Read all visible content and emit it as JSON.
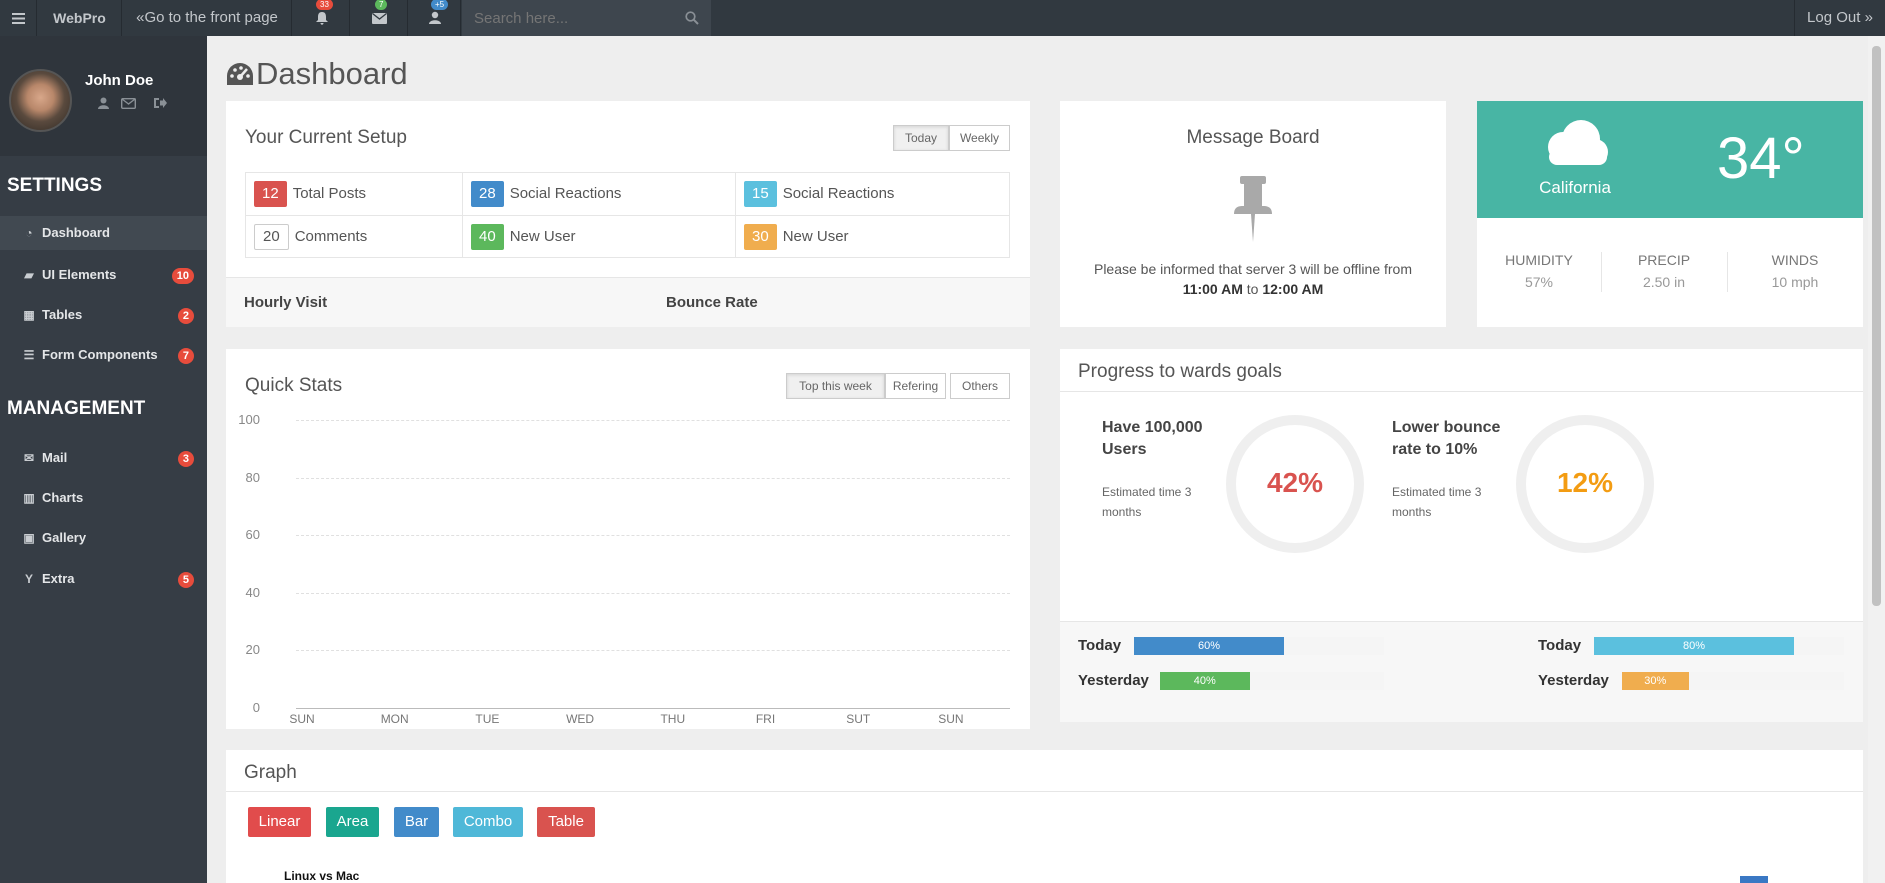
{
  "topbar": {
    "brand": "WebPro",
    "front_link": "«Go to the front page",
    "notifications_count": "33",
    "messages_count": "7",
    "users_count": "+5",
    "search_placeholder": "Search here...",
    "logout": "Log Out »"
  },
  "user": {
    "name": "John Doe"
  },
  "sidebar": {
    "settings_heading": "SETTINGS",
    "management_heading": "MANAGEMENT",
    "items": [
      {
        "label": "Dashboard",
        "badge": ""
      },
      {
        "label": "UI Elements",
        "badge": "10"
      },
      {
        "label": "Tables",
        "badge": "2"
      },
      {
        "label": "Form Components",
        "badge": "7"
      },
      {
        "label": "Mail",
        "badge": "3"
      },
      {
        "label": "Charts",
        "badge": ""
      },
      {
        "label": "Gallery",
        "badge": ""
      },
      {
        "label": "Extra",
        "badge": "5"
      }
    ]
  },
  "page": {
    "title": "Dashboard"
  },
  "setup": {
    "title": "Your Current Setup",
    "btn_today": "Today",
    "btn_weekly": "Weekly",
    "stats": [
      {
        "num": "12",
        "label": "Total Posts",
        "color": "#d9534f"
      },
      {
        "num": "28",
        "label": "Social Reactions",
        "color": "#428bca"
      },
      {
        "num": "15",
        "label": "Social Reactions",
        "color": "#5bc0de"
      },
      {
        "num": "20",
        "label": "Comments",
        "color": "#ffffff"
      },
      {
        "num": "40",
        "label": "New User",
        "color": "#5cb85c"
      },
      {
        "num": "30",
        "label": "New User",
        "color": "#f0ad4e"
      }
    ],
    "hourly_visit": "Hourly Visit",
    "bounce_rate": "Bounce Rate"
  },
  "message_board": {
    "title": "Message Board",
    "text": "Please be informed that server 3 will be offline from",
    "time_from": "11:00 AM",
    "to": "to",
    "time_to": "12:00 AM"
  },
  "weather": {
    "location": "California",
    "temperature": "34°",
    "humidity_label": "HUMIDITY",
    "humidity": "57%",
    "precip_label": "PRECIP",
    "precip": "2.50 in",
    "winds_label": "WINDS",
    "winds": "10 mph"
  },
  "quick_stats": {
    "title": "Quick Stats",
    "btn_top": "Top this week",
    "btn_refering": "Refering",
    "btn_others": "Others"
  },
  "chart_data": {
    "type": "line",
    "categories": [
      "SUN",
      "MON",
      "TUE",
      "WED",
      "THU",
      "FRI",
      "SUT",
      "SUN"
    ],
    "yticks": [
      "100",
      "80",
      "60",
      "40",
      "20",
      "0"
    ],
    "ylim": [
      0,
      100
    ],
    "grid": true,
    "series": []
  },
  "goals": {
    "title": "Progress to wards goals",
    "goal1_title": "Have 100,000 Users",
    "goal1_est": "Estimated time 3 months",
    "goal1_pct": "42%",
    "goal1_value": 0.42,
    "goal2_title": "Lower bounce rate to 10%",
    "goal2_est": "Estimated time 3 months",
    "goal2_pct": "12%",
    "goal2_value": 0.12,
    "bars": [
      {
        "label": "Today",
        "text": "60%",
        "value": 0.6,
        "color": "#428bca"
      },
      {
        "label": "Yesterday",
        "text": "40%",
        "value": 0.4,
        "color": "#5cb85c"
      },
      {
        "label": "Today",
        "text": "80%",
        "value": 0.8,
        "color": "#5bc0de"
      },
      {
        "label": "Yesterday",
        "text": "30%",
        "value": 0.3,
        "color": "#f0ad4e"
      }
    ]
  },
  "graph": {
    "title": "Graph",
    "buttons": [
      "Linear",
      "Area",
      "Bar",
      "Combo",
      "Table"
    ],
    "chart_title": "Linux vs Mac"
  }
}
